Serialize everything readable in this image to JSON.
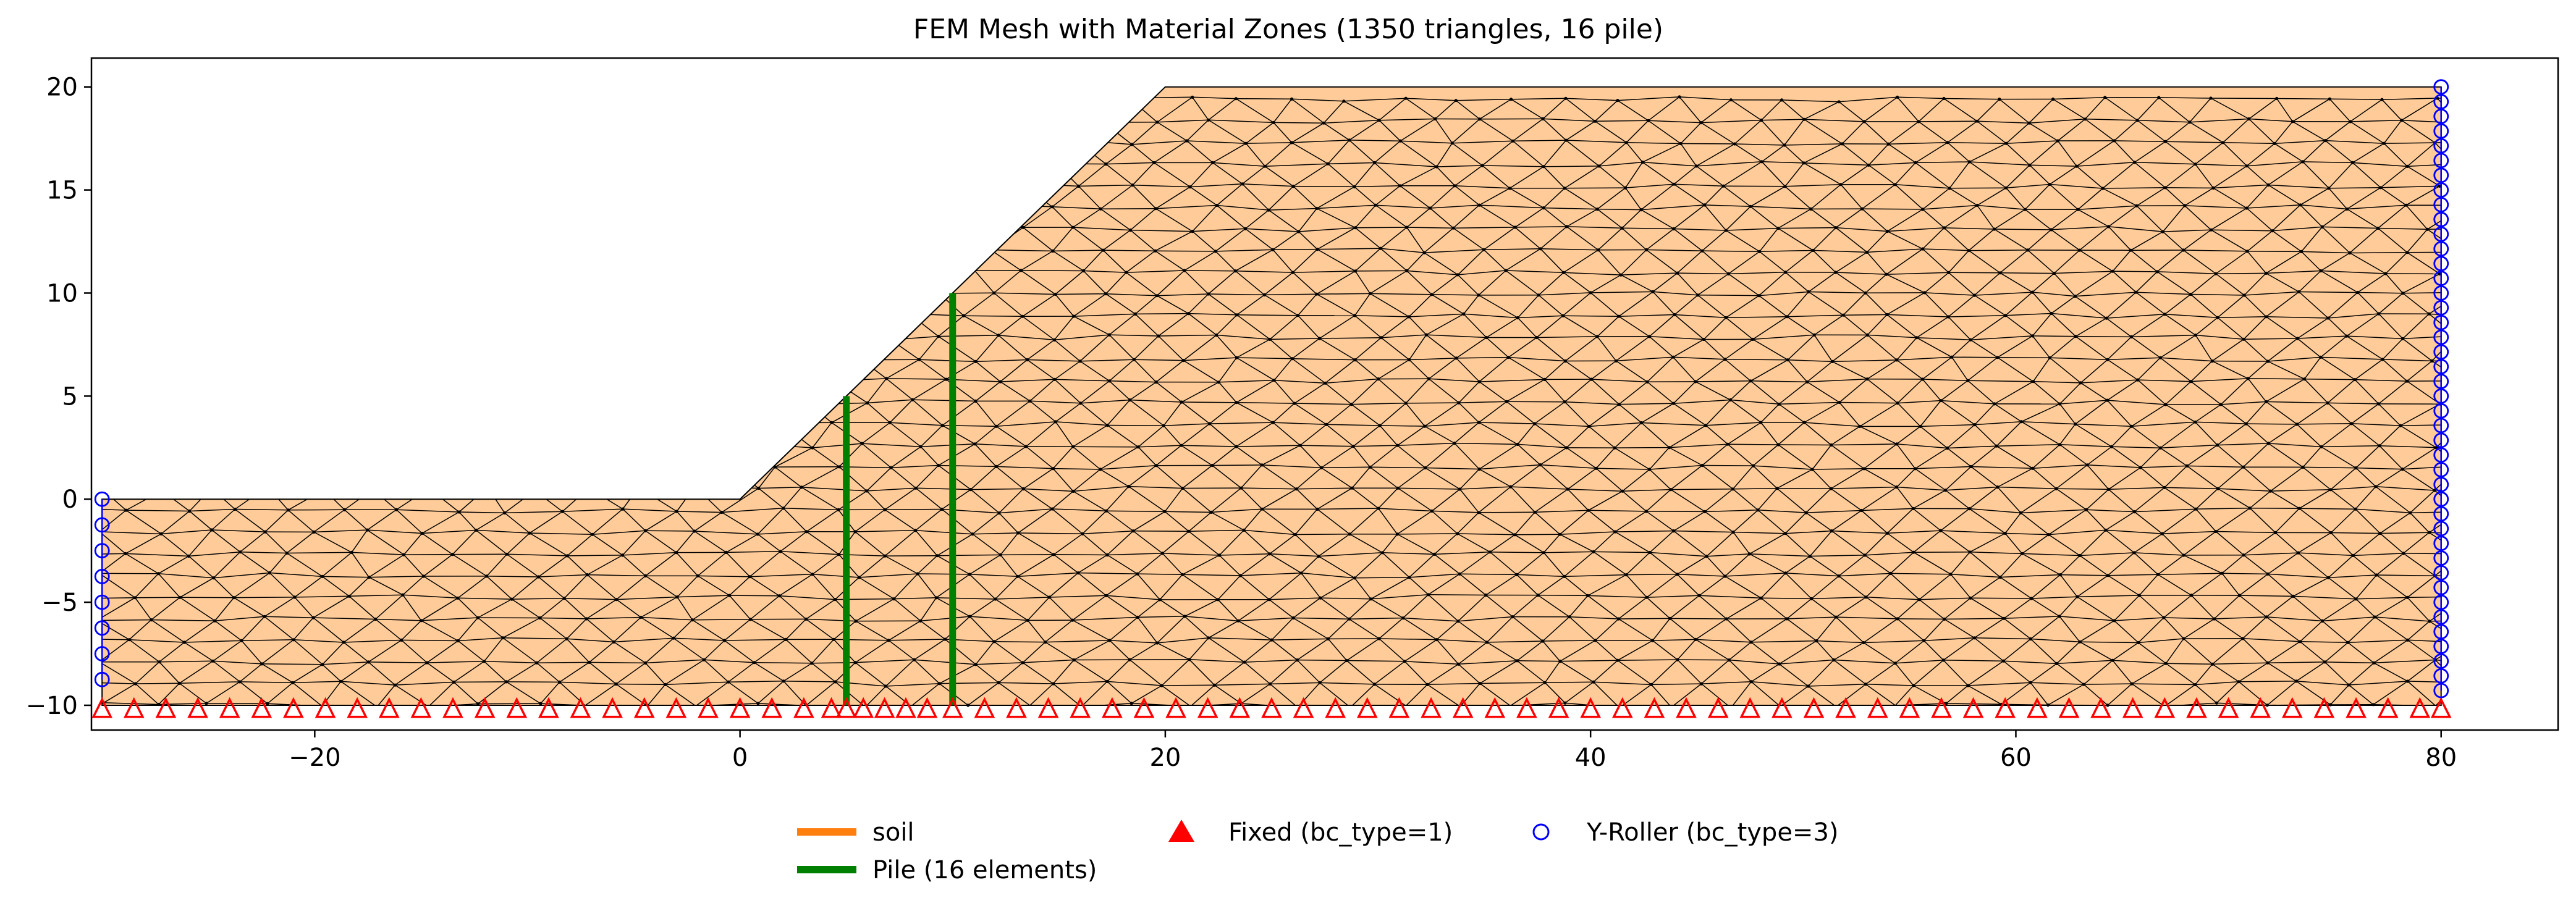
{
  "chart_data": {
    "type": "mesh",
    "title": "FEM Mesh with Material Zones (1350 triangles, 16 pile)",
    "xlabel": "",
    "ylabel": "",
    "xlim": [
      -30.5,
      85.5
    ],
    "ylim": [
      -11.2,
      21.4
    ],
    "xticks": [
      -20,
      0,
      20,
      40,
      60,
      80
    ],
    "yticks": [
      -10,
      -5,
      0,
      5,
      10,
      15,
      20
    ],
    "grid": false,
    "colors": {
      "soil_fill": "#ffcc99",
      "soil_legend": "#ff7f0e",
      "mesh_edge": "#000000",
      "pile": "#008000",
      "fixed": "#ff0000",
      "roller": "#0000ff"
    },
    "series": [
      {
        "name": "soil",
        "kind": "material-zone",
        "polygon": [
          [
            -30,
            -10
          ],
          [
            80,
            -10
          ],
          [
            80,
            20
          ],
          [
            20,
            20
          ],
          [
            0,
            0
          ],
          [
            -30,
            0
          ]
        ]
      },
      {
        "name": "Pile (16 elements)",
        "kind": "pile",
        "lines": [
          {
            "x": 5,
            "y_bottom": -10,
            "y_top": 5
          },
          {
            "x": 10,
            "y_bottom": -10,
            "y_top": 10
          }
        ]
      },
      {
        "name": "Fixed (bc_type=1)",
        "kind": "boundary-fixed",
        "y": -10.2,
        "x": [
          -30,
          -28.5,
          -27,
          -25.5,
          -24,
          -22.5,
          -21,
          -19.5,
          -18,
          -16.5,
          -15,
          -13.5,
          -12,
          -10.5,
          -9,
          -7.5,
          -6,
          -4.5,
          -3,
          -1.5,
          0,
          1.5,
          3,
          4.3,
          5,
          5.8,
          6.8,
          7.8,
          8.8,
          10,
          11.5,
          13,
          14.5,
          16,
          17.5,
          19,
          20.5,
          22,
          23.5,
          25,
          26.5,
          28,
          29.5,
          31,
          32.5,
          34,
          35.5,
          37,
          38.5,
          40,
          41.5,
          43,
          44.5,
          46,
          47.5,
          49,
          50.5,
          52,
          53.5,
          55,
          56.5,
          58,
          59.5,
          61,
          62.5,
          64,
          65.5,
          67,
          68.5,
          70,
          71.5,
          73,
          74.5,
          76,
          77.5,
          79,
          80
        ]
      },
      {
        "name": "Y-Roller (bc_type=3)",
        "kind": "boundary-roller",
        "left": {
          "x": -30,
          "y": [
            0,
            -1.25,
            -2.5,
            -3.75,
            -5,
            -6.25,
            -7.5,
            -8.75
          ]
        },
        "right": {
          "x": 80,
          "y": [
            20,
            19.286,
            18.571,
            17.857,
            17.143,
            16.429,
            15.714,
            15,
            14.286,
            13.571,
            12.857,
            12.143,
            11.429,
            10.714,
            10,
            9.286,
            8.571,
            7.857,
            7.143,
            6.429,
            5.714,
            5,
            4.286,
            3.571,
            2.857,
            2.143,
            1.429,
            0.714,
            0,
            -0.714,
            -1.429,
            -2.143,
            -2.857,
            -3.571,
            -4.286,
            -5,
            -5.714,
            -6.429,
            -7.143,
            -7.857,
            -8.571,
            -9.286
          ]
        }
      }
    ],
    "legend": {
      "placement": "bottom-center",
      "entries": [
        {
          "label": "soil",
          "marker": "line",
          "color": "#ff7f0e"
        },
        {
          "label": "Pile (16 elements)",
          "marker": "line",
          "color": "#008000"
        },
        {
          "label": "Fixed (bc_type=1)",
          "marker": "filled-triangle",
          "color": "#ff0000"
        },
        {
          "label": "Y-Roller (bc_type=3)",
          "marker": "open-circle",
          "color": "#0000ff"
        }
      ]
    }
  }
}
